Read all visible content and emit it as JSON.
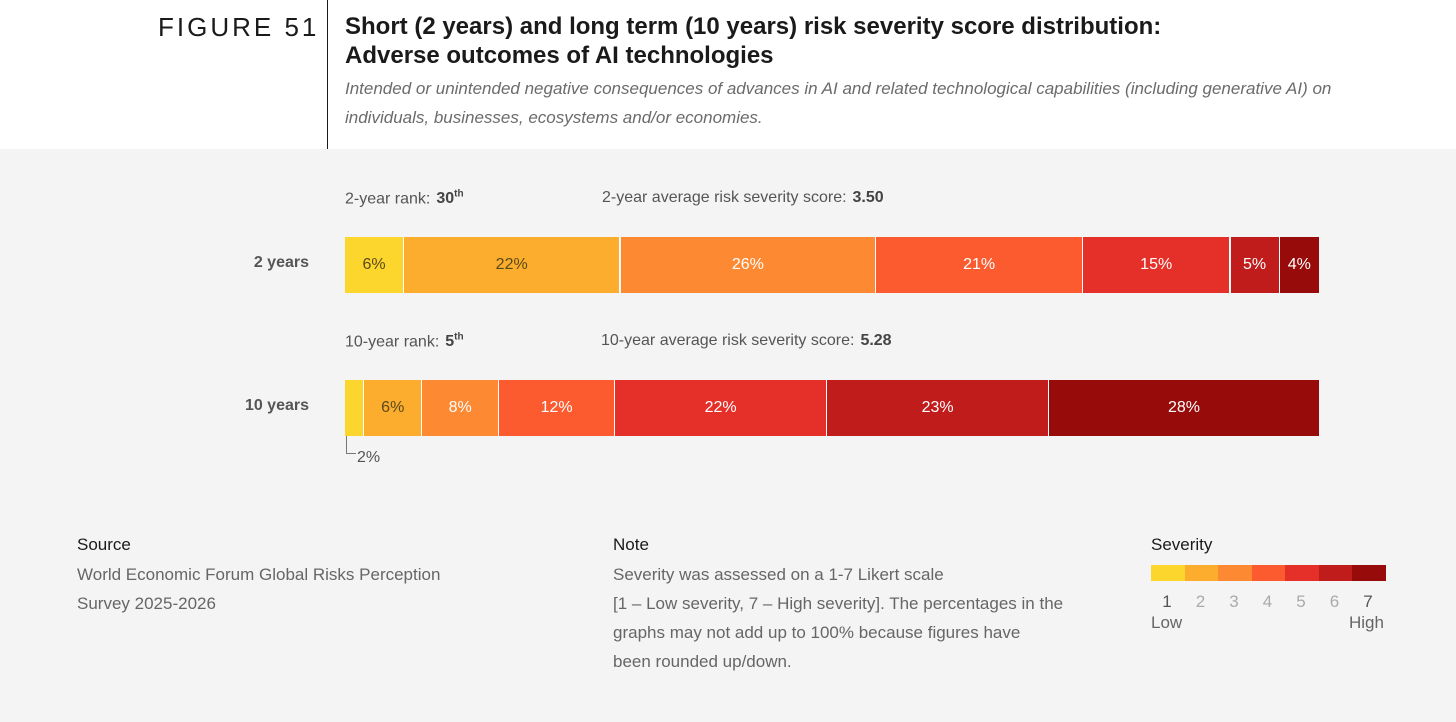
{
  "figure": {
    "label": "FIGURE 51",
    "title_line1": "Short (2 years) and long term (10 years) risk severity score distribution:",
    "title_line2": "Adverse outcomes of AI technologies",
    "subtitle_line1": "Intended or unintended negative consequences of advances in AI and related technological capabilities (including generative AI) on",
    "subtitle_line2": "individuals, businesses, ecosystems and/or economies."
  },
  "short_term": {
    "rank_label": "2-year rank:",
    "rank_value": "30",
    "rank_suffix": "th",
    "avg_label": "2-year average risk severity score:",
    "avg_value": "3.50"
  },
  "long_term": {
    "rank_label": "10-year rank:",
    "rank_value": "5",
    "rank_suffix": "th",
    "avg_label": "10-year average risk severity score:",
    "avg_value": "5.28",
    "small_callout": "2%"
  },
  "chart_data": {
    "type": "bar",
    "orientation": "horizontal-stacked",
    "categories": [
      "2 years",
      "10 years"
    ],
    "severity_levels": [
      1,
      2,
      3,
      4,
      5,
      6,
      7
    ],
    "series": [
      {
        "values": [
          6,
          2
        ],
        "labels": [
          "6%",
          ""
        ]
      },
      {
        "values": [
          22,
          6
        ],
        "labels": [
          "22%",
          "6%"
        ]
      },
      {
        "values": [
          26,
          8
        ],
        "labels": [
          "26%",
          "8%"
        ]
      },
      {
        "values": [
          21,
          12
        ],
        "labels": [
          "21%",
          "12%"
        ]
      },
      {
        "values": [
          15,
          22
        ],
        "labels": [
          "15%",
          "22%"
        ]
      },
      {
        "values": [
          5,
          23
        ],
        "labels": [
          "5%",
          "23%"
        ]
      },
      {
        "values": [
          4,
          28
        ],
        "labels": [
          "4%",
          "28%"
        ]
      }
    ],
    "colors": [
      "#fdd62d",
      "#fcad2e",
      "#fd8a33",
      "#fc5b30",
      "#e5302a",
      "#c11c1c",
      "#980b0b"
    ],
    "title": "",
    "xlabel": "",
    "ylabel": ""
  },
  "footer": {
    "source_heading": "Source",
    "source_line1": "World Economic Forum Global Risks Perception",
    "source_line2": "Survey 2025-2026",
    "note_heading": "Note",
    "note_line1": "Severity was assessed on a 1-7 Likert scale",
    "note_line2": "[1 – Low severity, 7 – High severity]. The percentages in the",
    "note_line3": "graphs may not add up to 100% because figures have",
    "note_line4": "been rounded up/down."
  },
  "legend": {
    "heading": "Severity",
    "numbers": [
      "1",
      "2",
      "3",
      "4",
      "5",
      "6",
      "7"
    ],
    "low": "Low",
    "high": "High"
  }
}
